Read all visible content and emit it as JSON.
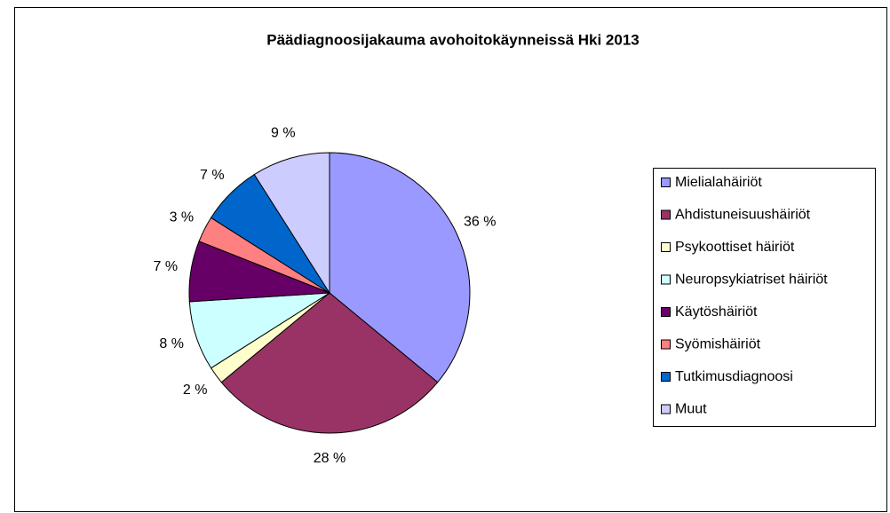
{
  "chart_data": {
    "type": "pie",
    "title": "Päädiagnoosijakauma avohoitokäynneissä Hki 2013",
    "categories": [
      "Mielialahäiriöt",
      "Ahdistuneisuushäiriöt",
      "Psykoottiset häiriöt",
      "Neuropsykiatriset häiriöt",
      "Käytöshäiriöt",
      "Syömishäiriöt",
      "Tutkimusdiagnoosi",
      "Muut"
    ],
    "values": [
      36,
      28,
      2,
      8,
      7,
      3,
      7,
      9
    ],
    "value_labels": [
      "36 %",
      "28 %",
      "2 %",
      "8 %",
      "7 %",
      "3 %",
      "7 %",
      "9 %"
    ],
    "colors": [
      "#9999ff",
      "#993366",
      "#ffffcc",
      "#ccffff",
      "#660066",
      "#ff8080",
      "#0066cc",
      "#ccccff"
    ],
    "legend": "right"
  }
}
